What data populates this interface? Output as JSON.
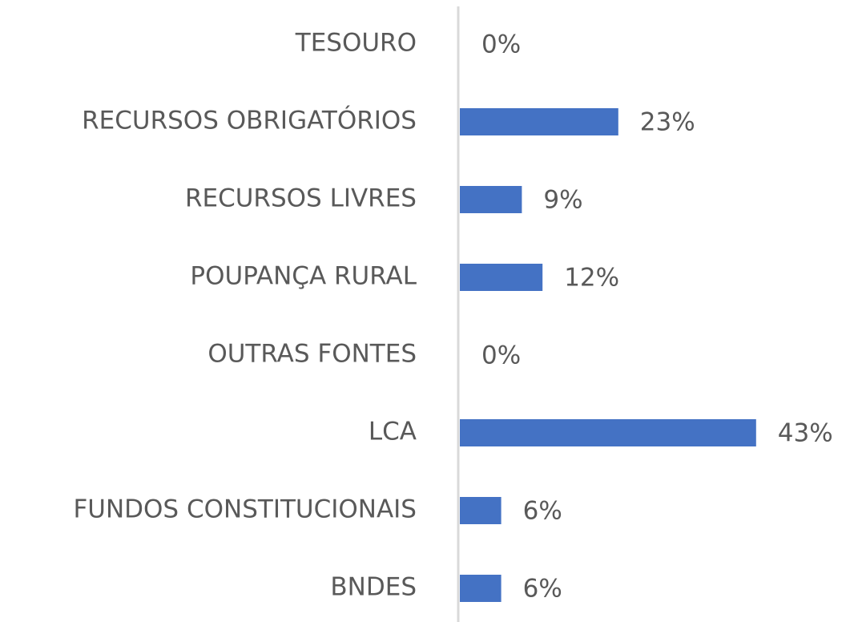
{
  "chart_data": {
    "type": "bar",
    "orientation": "horizontal",
    "categories": [
      "TESOURO",
      "RECURSOS OBRIGATÓRIOS",
      "RECURSOS LIVRES",
      "POUPANÇA RURAL",
      "OUTRAS FONTES",
      "LCA",
      "FUNDOS CONSTITUCIONAIS",
      "BNDES"
    ],
    "values": [
      0,
      23,
      9,
      12,
      0,
      43,
      6,
      6
    ],
    "value_labels": [
      "0%",
      "23%",
      "9%",
      "12%",
      "0%",
      "43%",
      "6%",
      "6%"
    ],
    "color": "#4472c4"
  }
}
